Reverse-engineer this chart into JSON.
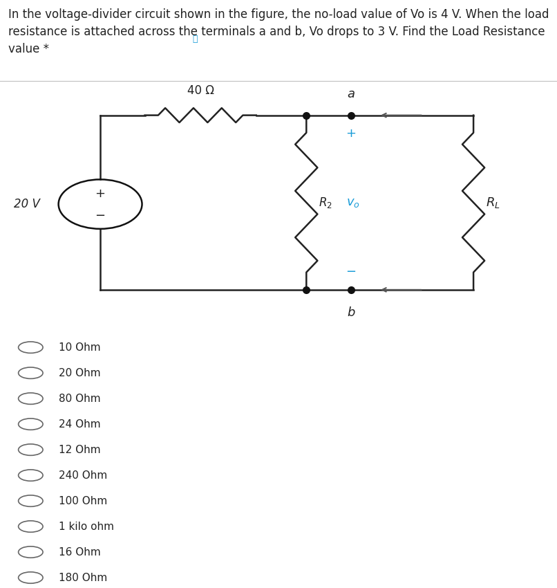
{
  "question_text": "In the voltage-divider circuit shown in the figure, the no-load value of Vo is 4 V. When the load\nresistance is attached across the terminals a and b, Vo drops to 3 V. Find the Load Resistance\nvalue *",
  "bg_color_top": "#dce9f5",
  "bg_color_bottom": "#ffffff",
  "options": [
    "10 Ohm",
    "20 Ohm",
    "80 Ohm",
    "24 Ohm",
    "12 Ohm",
    "240 Ohm",
    "100 Ohm",
    "1 kilo ohm",
    "16 Ohm",
    "180 Ohm"
  ],
  "label_40": "40 Ω",
  "label_20V": "20 V",
  "label_a": "a",
  "label_b": "b",
  "wire_color": "#222222",
  "dot_color": "#111111",
  "vo_color": "#1a9cd8",
  "plus_color": "#1a9cd8",
  "minus_color": "#1a9cd8",
  "arrow_color": "#555555",
  "font_size_question": 12,
  "font_size_options": 11,
  "lw": 1.8
}
